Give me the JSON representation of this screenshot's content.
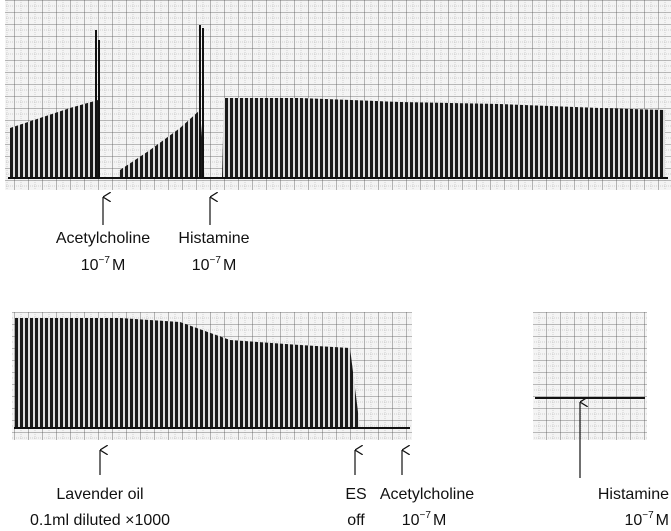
{
  "recordings": [
    {
      "labels": [
        {
          "name": "Acetylcholine",
          "concentration": {
            "base": "10",
            "exponent": "−7",
            "unit": "M"
          }
        },
        {
          "name": "Histamine",
          "concentration": {
            "base": "10",
            "exponent": "−7",
            "unit": "M"
          }
        }
      ]
    },
    {
      "labels": [
        {
          "name": "Lavender oil",
          "detail": "0.1ml diluted ×1000"
        },
        {
          "name": "ES",
          "detail": "off"
        },
        {
          "name": "Acetylcholine",
          "concentration": {
            "base": "10",
            "exponent": "−7",
            "unit": "M"
          }
        },
        {
          "name": "Histamine",
          "concentration": {
            "base": "10",
            "exponent": "−7",
            "unit": "M"
          }
        }
      ]
    }
  ]
}
